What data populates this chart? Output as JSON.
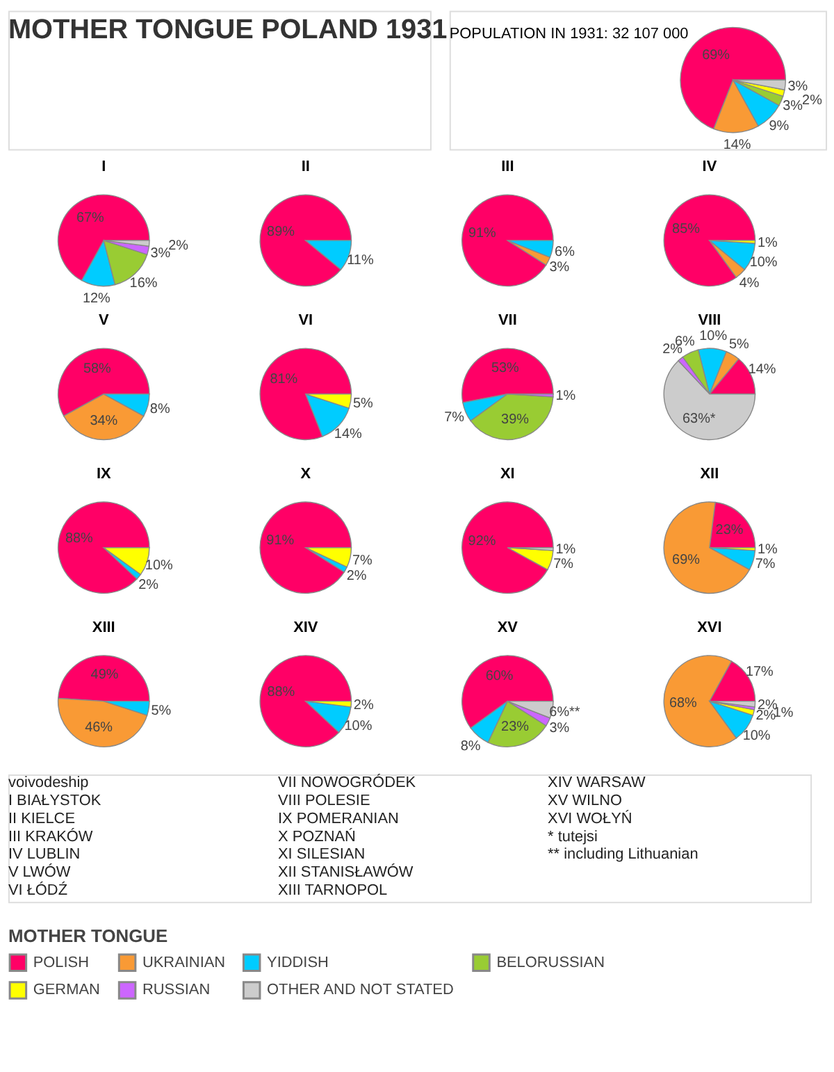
{
  "chart_data": [
    {
      "type": "other",
      "title": "MOTHER TONGUE POLAND 1931",
      "annotations": [
        "voivodeship",
        "I BIAŁYSTOK",
        "II KIELCE",
        "III KRAKÓW",
        "IV LUBLIN",
        "V LWÓW",
        "VI ŁÓDŹ",
        "VII NOWOGRÓDEK",
        "VIII POLESIE",
        "IX POMERANIAN",
        "X POZNAŃ",
        "XI SILESIAN",
        "XII STANISŁAWÓW",
        "XIII TARNOPOL",
        "XIV WARSAW",
        "XV WILNO",
        "XVI WOŁYŃ",
        "* tutejsi",
        "** including Lithuanian"
      ]
    },
    {
      "type": "pie",
      "annotations": [
        "POPULATION IN 1931: 32 107 000"
      ],
      "legend": "bottom",
      "legend_title": "MOTHER TONGUE",
      "categories": [
        "POLISH",
        "UKRAINIAN",
        "YIDDISH",
        "BELORUSSIAN",
        "GERMAN",
        "RUSSIAN",
        "OTHER AND NOT STATED"
      ],
      "colors": [
        "#ff0066",
        "#f99a35",
        "#00ccff",
        "#99cc33",
        "#ffff00",
        "#cc66ff",
        "#cccccc"
      ],
      "series": [
        {
          "values": [
            69,
            14,
            9,
            3,
            2,
            null,
            3
          ],
          "value_labels": [
            "69%",
            "14%",
            "9%",
            "3%",
            "2%",
            null,
            "3%"
          ]
        },
        {
          "name": "I",
          "values": [
            67,
            null,
            12,
            16,
            null,
            3,
            2
          ],
          "value_labels": [
            "67%",
            null,
            "12%",
            "16%",
            null,
            "3%",
            "2%"
          ]
        },
        {
          "name": "II",
          "values": [
            89,
            null,
            11,
            null,
            null,
            null,
            null
          ],
          "value_labels": [
            "89%",
            null,
            "11%",
            null,
            null,
            null,
            null
          ]
        },
        {
          "name": "III",
          "values": [
            91,
            3,
            6,
            null,
            null,
            null,
            null
          ],
          "value_labels": [
            "91%",
            "3%",
            "6%",
            null,
            null,
            null,
            null
          ]
        },
        {
          "name": "IV",
          "values": [
            85,
            4,
            10,
            null,
            1,
            null,
            null
          ],
          "value_labels": [
            "85%",
            "4%",
            "10%",
            null,
            "1%",
            null,
            null
          ]
        },
        {
          "name": "V",
          "values": [
            58,
            34,
            8,
            null,
            null,
            null,
            null
          ],
          "value_labels": [
            "58%",
            "34%",
            "8%",
            null,
            null,
            null,
            null
          ]
        },
        {
          "name": "VI",
          "values": [
            81,
            null,
            14,
            null,
            5,
            null,
            null
          ],
          "value_labels": [
            "81%",
            null,
            "14%",
            null,
            "5%",
            null,
            null
          ]
        },
        {
          "name": "VII",
          "values": [
            53,
            null,
            7,
            39,
            null,
            1,
            null
          ],
          "value_labels": [
            "53%",
            null,
            "7%",
            "39%",
            null,
            "1%",
            null
          ]
        },
        {
          "name": "VIII",
          "values": [
            14,
            5,
            10,
            6,
            null,
            2,
            63
          ],
          "value_labels": [
            "14%",
            "5%",
            "10%",
            "6%",
            null,
            "2%",
            "63%*"
          ]
        },
        {
          "name": "IX",
          "values": [
            88,
            null,
            2,
            null,
            10,
            null,
            null
          ],
          "value_labels": [
            "88%",
            null,
            "2%",
            null,
            "10%",
            null,
            null
          ]
        },
        {
          "name": "X",
          "values": [
            91,
            null,
            2,
            null,
            7,
            null,
            null
          ],
          "value_labels": [
            "91%",
            null,
            "2%",
            null,
            "7%",
            null,
            null
          ]
        },
        {
          "name": "XI",
          "values": [
            92,
            null,
            null,
            null,
            7,
            null,
            1
          ],
          "value_labels": [
            "92%",
            null,
            null,
            null,
            "7%",
            null,
            "1%"
          ]
        },
        {
          "name": "XII",
          "values": [
            23,
            69,
            7,
            null,
            1,
            null,
            null
          ],
          "value_labels": [
            "23%",
            "69%",
            "7%",
            null,
            "1%",
            null,
            null
          ]
        },
        {
          "name": "XIII",
          "values": [
            49,
            46,
            5,
            null,
            null,
            null,
            null
          ],
          "value_labels": [
            "49%",
            "46%",
            "5%",
            null,
            null,
            null,
            null
          ]
        },
        {
          "name": "XIV",
          "values": [
            88,
            null,
            10,
            null,
            2,
            null,
            null
          ],
          "value_labels": [
            "88%",
            null,
            "10%",
            null,
            "2%",
            null,
            null
          ]
        },
        {
          "name": "XV",
          "values": [
            60,
            null,
            8,
            23,
            null,
            3,
            6
          ],
          "value_labels": [
            "60%",
            null,
            "8%",
            "23%",
            null,
            "3%",
            "6%**"
          ]
        },
        {
          "name": "XVI",
          "values": [
            17,
            68,
            10,
            null,
            2,
            1,
            2
          ],
          "value_labels": [
            "17%",
            "68%",
            "10%",
            null,
            "2%",
            "1%",
            "2%"
          ]
        }
      ]
    }
  ]
}
